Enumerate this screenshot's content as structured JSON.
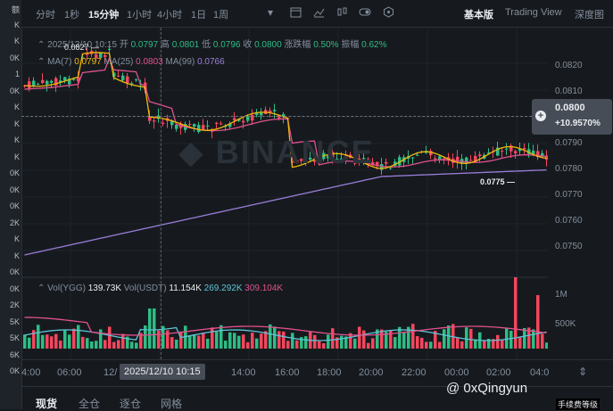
{
  "left_strip": [
    "额",
    "K",
    "K",
    "0K",
    "1",
    "0K",
    "K",
    "K",
    "K",
    "K",
    "0K",
    "0K",
    "0K",
    "2K",
    "K",
    "K",
    "0K",
    "0K",
    "2K",
    "5K",
    "5K",
    "6K",
    "0K"
  ],
  "toolbar": {
    "intervals": [
      "分时",
      "1秒",
      "15分钟",
      "1小时",
      "4小时",
      "1日",
      "1周"
    ],
    "active_interval": "15分钟",
    "dropdown_icon": "chevron-down-icon",
    "tool_icons": [
      "calendar-icon",
      "line-chart-icon",
      "candle-settings-icon",
      "toggle-icon",
      "hexagon-icon"
    ],
    "views": [
      "基本版",
      "Trading View",
      "深度图"
    ],
    "active_view": "基本版"
  },
  "ohlc": {
    "datetime": "2025/12/10 10:15",
    "open_label": "开",
    "open": "0.0797",
    "high_label": "高",
    "high": "0.0801",
    "low_label": "低",
    "low": "0.0796",
    "close_label": "收",
    "close": "0.0800",
    "change_label": "涨跌幅",
    "change": "0.50%",
    "amp_label": "振幅",
    "amp": "0.62%"
  },
  "ma": {
    "ma7_label": "MA(7)",
    "ma7": "0.0797",
    "ma25_label": "MA(25)",
    "ma25": "0.0803",
    "ma99_label": "MA(99)",
    "ma99": "0.0766",
    "ma7_color": "#f0b90b",
    "ma25_color": "#e0518f",
    "ma99_color": "#9b7fdc"
  },
  "vol": {
    "vol_coin_label": "Vol(YGG)",
    "vol_coin": "139.73K",
    "vol_usdt_label": "Vol(USDT)",
    "vol_usdt": "11.154K",
    "ma1": "269.292K",
    "ma2": "309.104K"
  },
  "yaxis": [
    "0.0820",
    "0.0810",
    "0.0790",
    "0.0780",
    "0.0770",
    "0.0760",
    "0.0750"
  ],
  "vol_axis": [
    "1M",
    "500K"
  ],
  "price_tag": {
    "price": "0.0800",
    "change": "+10.9570%"
  },
  "annotations": {
    "high": "0.0827",
    "low": "0.0775"
  },
  "xaxis": [
    "4:00",
    "06:00",
    "12/",
    "14:00",
    "16:00",
    "18:00",
    "20:00",
    "22:00",
    "00:00",
    "02:00",
    "04:0"
  ],
  "crosshair_time": "2025/12/10 10:15",
  "bottom_tabs": [
    "现货",
    "全仓",
    "逐仓",
    "网格"
  ],
  "active_tab": "现货",
  "watermark": {
    "handle": "@ 0xQingyun",
    "tag": "手续费等级"
  },
  "colors": {
    "up": "#2ebd85",
    "down": "#f6465d",
    "bg": "#161a1e"
  }
}
